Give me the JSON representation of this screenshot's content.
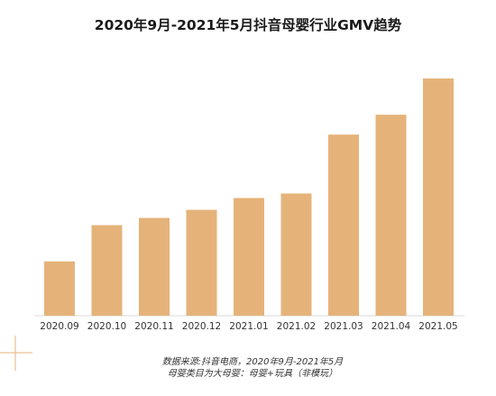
{
  "chart_data": {
    "type": "bar",
    "title": "2020年9月-2021年5月抖音母婴行业GMV趋势",
    "categories": [
      "2020.09",
      "2020.10",
      "2020.11",
      "2020.12",
      "2021.01",
      "2021.02",
      "2021.03",
      "2021.04",
      "2021.05"
    ],
    "values": [
      60,
      100,
      108,
      117,
      130,
      135,
      200,
      222,
      262
    ],
    "xlabel": "",
    "ylabel": "",
    "ylim": [
      0,
      262
    ],
    "grid": false,
    "bar_color": "#E5B37A",
    "notes": [
      "数据来源:抖音电商，2020年9月-2021年5月",
      "母婴类目为大母婴：母婴+玩具（非模玩）"
    ]
  }
}
